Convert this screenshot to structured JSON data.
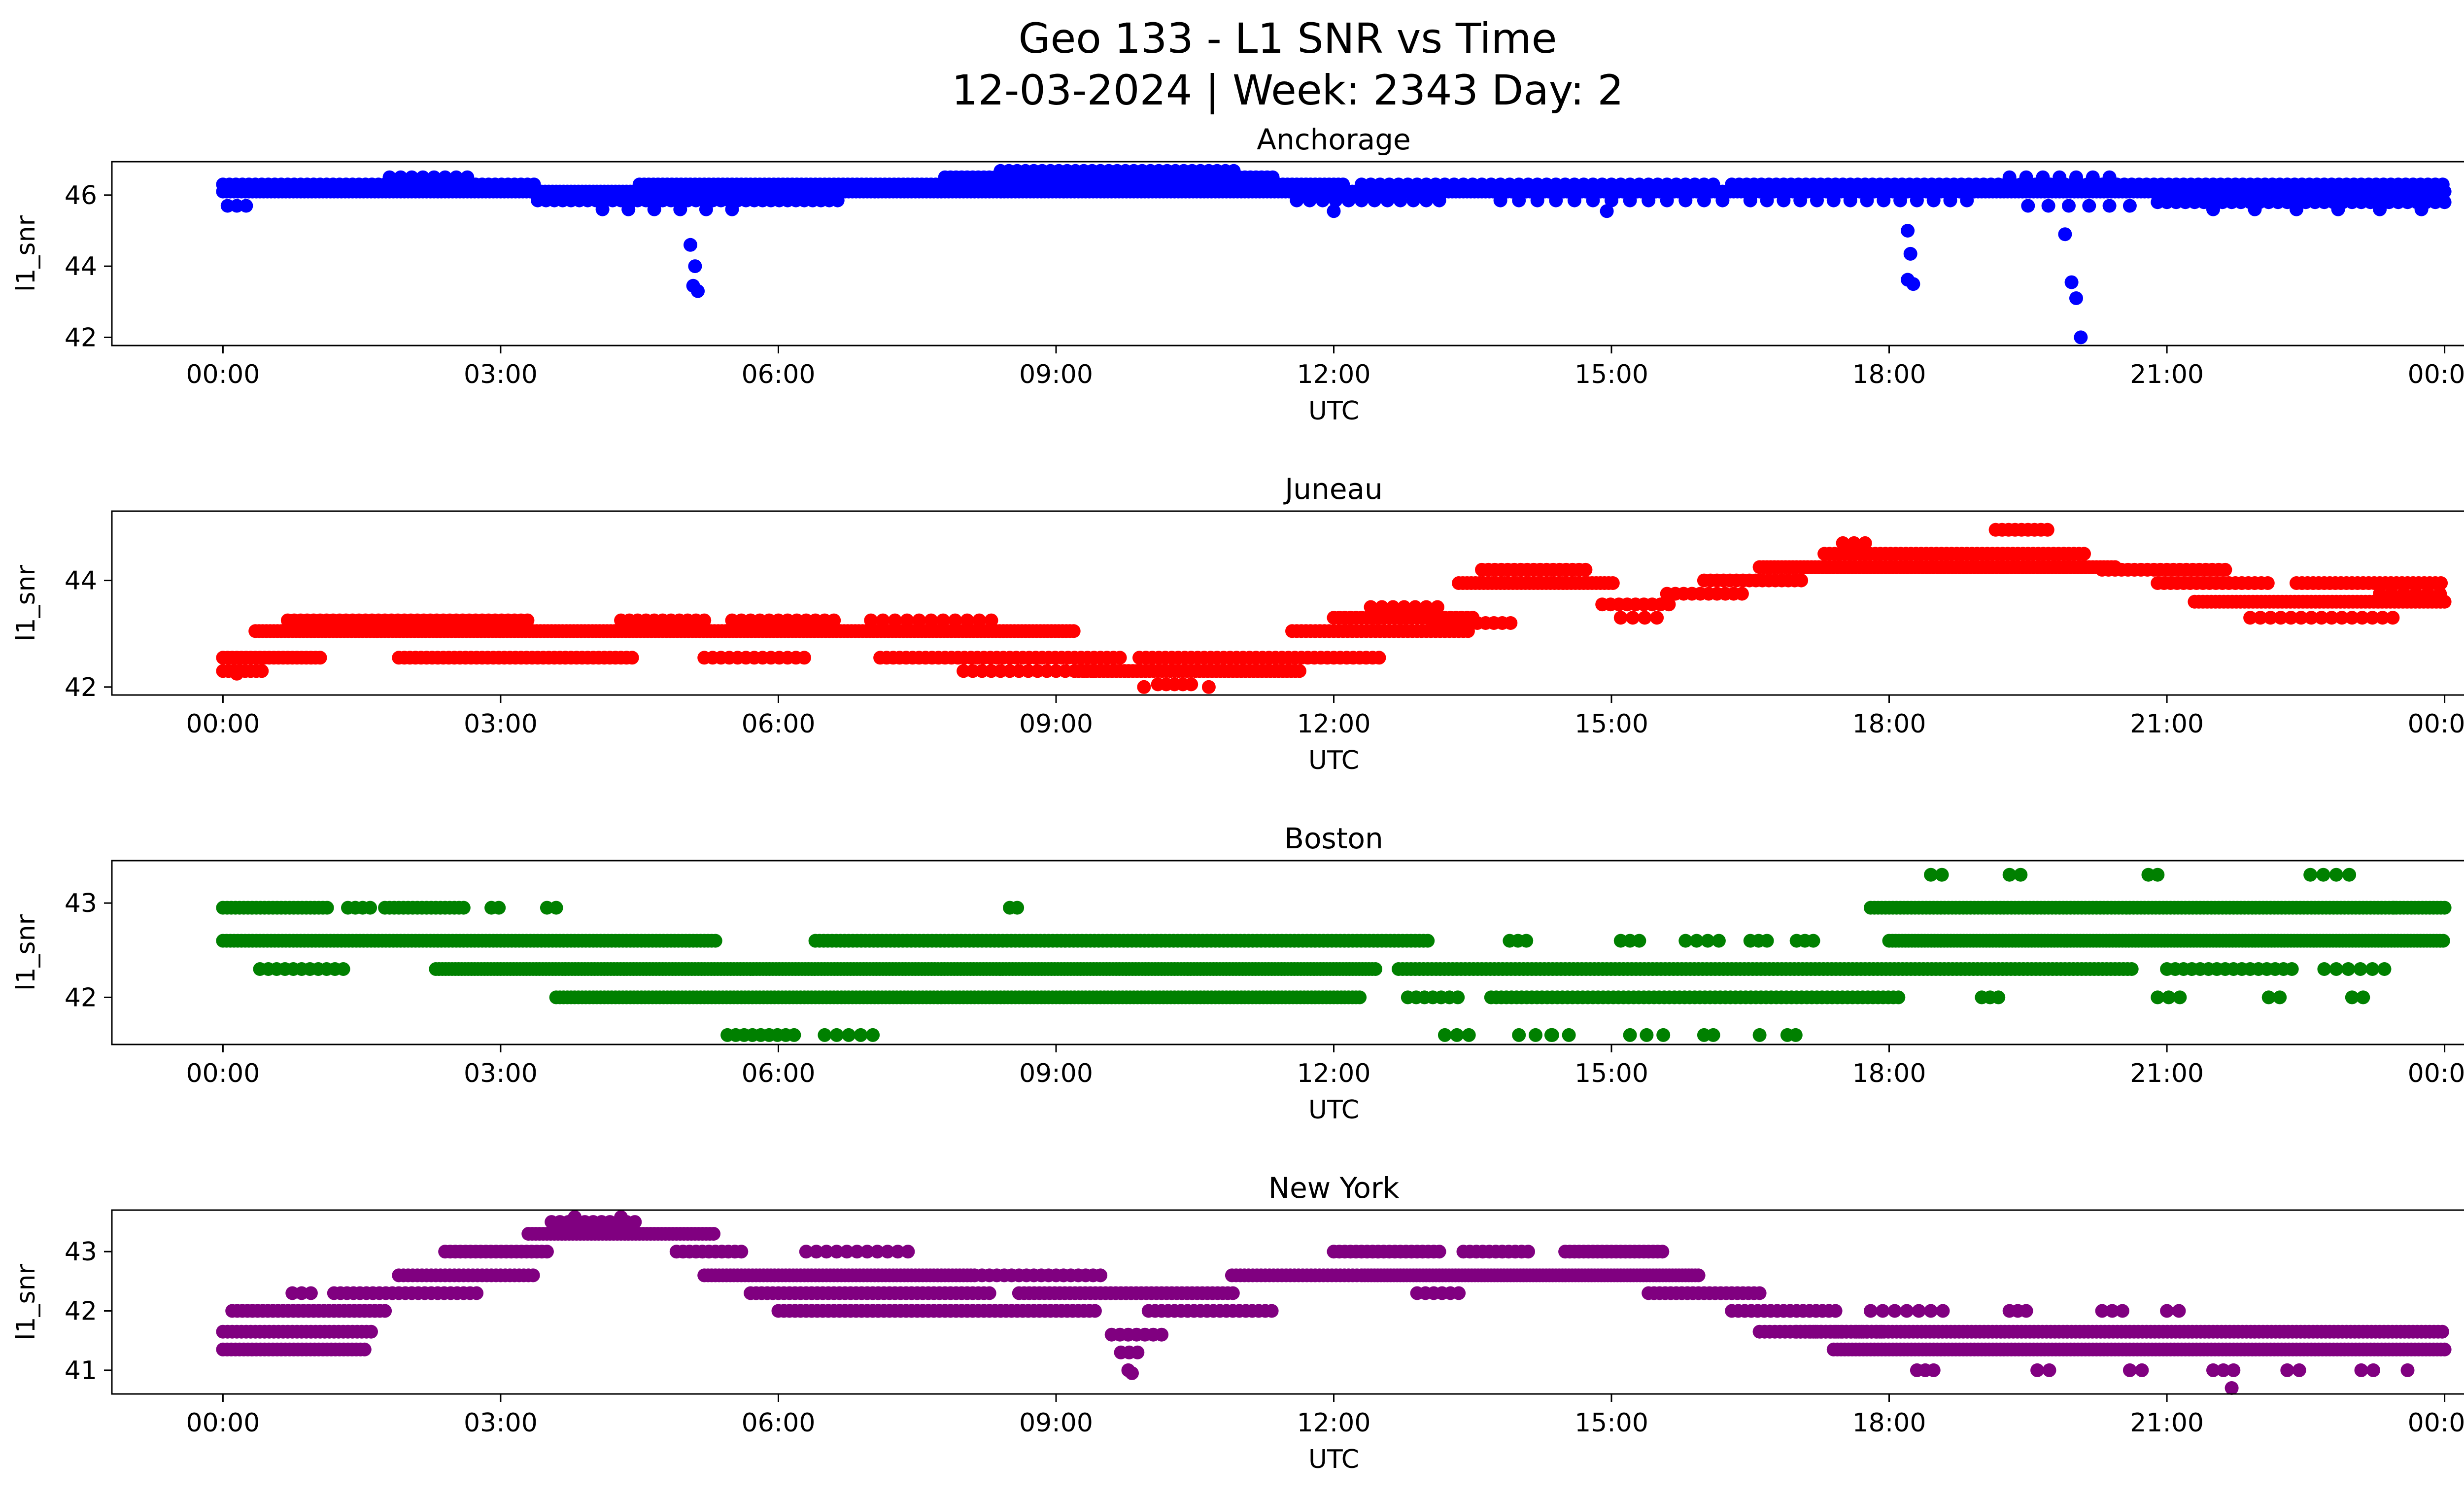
{
  "chart_data": {
    "type": "scatter",
    "title": "Geo 133 - L1 SNR vs Time",
    "subtitle": "12-03-2024 | Week: 2343 Day: 2",
    "xlabel": "UTC",
    "ylabel": "l1_snr",
    "xlim": [
      -1.2,
      25.2
    ],
    "grid": false,
    "legend": "none",
    "xticks": {
      "values": [
        0,
        3,
        6,
        9,
        12,
        15,
        18,
        21,
        24
      ],
      "labels": [
        "00:00",
        "03:00",
        "06:00",
        "09:00",
        "12:00",
        "15:00",
        "18:00",
        "21:00",
        "00:00"
      ]
    },
    "subplots": [
      {
        "title": "Anchorage",
        "color": "#0000ff",
        "ylim": [
          41.77,
          46.94
        ],
        "yticks": [
          42,
          44,
          46
        ],
        "segments": [
          [
            0.0,
            24.0,
            46.1,
            0.04
          ],
          [
            0.0,
            3.4,
            46.3,
            0.07
          ],
          [
            4.5,
            12.1,
            46.3,
            0.05
          ],
          [
            12.3,
            16.1,
            46.3,
            0.1
          ],
          [
            16.3,
            24.0,
            46.3,
            0.08
          ],
          [
            3.4,
            6.7,
            45.85,
            0.09
          ],
          [
            0.05,
            0.3,
            45.7,
            0.1
          ],
          [
            11.6,
            13.2,
            45.85,
            0.14
          ],
          [
            13.8,
            16.2,
            45.85,
            0.2
          ],
          [
            16.5,
            19.0,
            45.85,
            0.18
          ],
          [
            20.9,
            24.0,
            45.8,
            0.1
          ],
          [
            19.5,
            20.7,
            45.7,
            0.22
          ],
          [
            1.8,
            2.75,
            46.5,
            0.12
          ],
          [
            7.8,
            11.35,
            46.5,
            0.06
          ],
          [
            8.4,
            11.0,
            46.68,
            0.09
          ],
          [
            19.3,
            20.5,
            46.5,
            0.18
          ],
          [
            4.1,
            5.7,
            45.6,
            0.28
          ],
          [
            21.5,
            23.8,
            45.6,
            0.45
          ]
        ],
        "points": [
          [
            5.05,
            44.6
          ],
          [
            5.1,
            44.0
          ],
          [
            5.08,
            43.45
          ],
          [
            5.13,
            43.3
          ],
          [
            18.2,
            45.0
          ],
          [
            18.23,
            44.35
          ],
          [
            18.2,
            43.62
          ],
          [
            18.26,
            43.5
          ],
          [
            19.9,
            44.9
          ],
          [
            19.97,
            43.55
          ],
          [
            20.02,
            43.1
          ],
          [
            20.07,
            42.0
          ],
          [
            12.0,
            45.55
          ],
          [
            14.95,
            45.55
          ]
        ]
      },
      {
        "title": "Juneau",
        "color": "#ff0000",
        "ylim": [
          41.85,
          45.3
        ],
        "yticks": [
          42,
          44
        ],
        "segments": [
          [
            0.0,
            0.45,
            42.3,
            0.06
          ],
          [
            0.0,
            1.05,
            42.55,
            0.05
          ],
          [
            0.35,
            9.2,
            43.05,
            0.04
          ],
          [
            0.7,
            3.35,
            43.25,
            0.07
          ],
          [
            4.3,
            5.2,
            43.25,
            0.09
          ],
          [
            5.5,
            6.6,
            43.25,
            0.1
          ],
          [
            7.0,
            8.4,
            43.25,
            0.13
          ],
          [
            1.9,
            4.45,
            42.55,
            0.06
          ],
          [
            5.2,
            6.35,
            42.55,
            0.09
          ],
          [
            7.1,
            9.7,
            42.55,
            0.07
          ],
          [
            8.0,
            9.45,
            42.3,
            0.1
          ],
          [
            9.2,
            11.65,
            42.3,
            0.045
          ],
          [
            10.1,
            10.5,
            42.05,
            0.09
          ],
          [
            9.9,
            12.5,
            42.55,
            0.07
          ],
          [
            11.55,
            13.45,
            43.05,
            0.05
          ],
          [
            12.0,
            13.55,
            43.3,
            0.06
          ],
          [
            12.4,
            13.15,
            43.5,
            0.12
          ],
          [
            13.1,
            13.95,
            43.2,
            0.09
          ],
          [
            13.35,
            15.05,
            43.95,
            0.045
          ],
          [
            13.6,
            14.75,
            44.2,
            0.07
          ],
          [
            14.9,
            15.65,
            43.55,
            0.09
          ],
          [
            15.1,
            15.55,
            43.3,
            0.13
          ],
          [
            15.6,
            16.45,
            43.75,
            0.09
          ],
          [
            16.0,
            17.05,
            44.0,
            0.07
          ],
          [
            16.6,
            20.45,
            44.25,
            0.04
          ],
          [
            17.3,
            20.15,
            44.5,
            0.055
          ],
          [
            19.15,
            19.75,
            44.95,
            0.07
          ],
          [
            17.5,
            17.85,
            44.7,
            0.12
          ],
          [
            20.3,
            21.65,
            44.2,
            0.07
          ],
          [
            20.9,
            22.15,
            43.95,
            0.07
          ],
          [
            21.3,
            24.0,
            43.6,
            0.045
          ],
          [
            22.4,
            24.0,
            43.95,
            0.06
          ],
          [
            21.9,
            23.45,
            43.3,
            0.11
          ],
          [
            23.3,
            24.0,
            43.75,
            0.13
          ]
        ],
        "points": [
          [
            9.95,
            42.0
          ],
          [
            10.65,
            42.0
          ],
          [
            0.15,
            42.25
          ]
        ]
      },
      {
        "title": "Boston",
        "color": "#008000",
        "ylim": [
          41.5,
          43.45
        ],
        "yticks": [
          42,
          43
        ],
        "segments": [
          [
            0.0,
            1.15,
            42.95,
            0.045
          ],
          [
            1.35,
            1.6,
            42.95,
            0.08
          ],
          [
            1.75,
            2.6,
            42.95,
            0.05
          ],
          [
            2.9,
            3.05,
            42.95,
            0.08
          ],
          [
            3.5,
            3.6,
            42.95,
            0.1
          ],
          [
            8.5,
            8.65,
            42.95,
            0.08
          ],
          [
            17.8,
            24.0,
            42.95,
            0.04
          ],
          [
            0.0,
            5.35,
            42.6,
            0.04
          ],
          [
            6.4,
            13.05,
            42.6,
            0.045
          ],
          [
            13.9,
            14.15,
            42.6,
            0.09
          ],
          [
            15.1,
            15.35,
            42.6,
            0.1
          ],
          [
            15.8,
            16.25,
            42.6,
            0.12
          ],
          [
            16.5,
            16.75,
            42.6,
            0.09
          ],
          [
            17.0,
            17.25,
            42.6,
            0.09
          ],
          [
            18.0,
            24.0,
            42.6,
            0.035
          ],
          [
            0.4,
            1.35,
            42.3,
            0.09
          ],
          [
            2.3,
            12.45,
            42.3,
            0.035
          ],
          [
            12.7,
            20.65,
            42.3,
            0.045
          ],
          [
            21.0,
            22.35,
            42.3,
            0.09
          ],
          [
            22.7,
            23.35,
            42.3,
            0.13
          ],
          [
            3.6,
            12.3,
            42.0,
            0.04
          ],
          [
            12.8,
            13.35,
            42.0,
            0.09
          ],
          [
            13.7,
            18.15,
            42.0,
            0.055
          ],
          [
            19.0,
            19.25,
            42.0,
            0.09
          ],
          [
            20.9,
            21.15,
            42.0,
            0.12
          ],
          [
            22.1,
            22.3,
            42.0,
            0.12
          ],
          [
            23.0,
            23.2,
            42.0,
            0.12
          ],
          [
            5.45,
            6.25,
            41.6,
            0.09
          ],
          [
            6.5,
            7.05,
            41.6,
            0.13
          ],
          [
            13.2,
            13.55,
            41.6,
            0.13
          ],
          [
            14.0,
            14.65,
            41.6,
            0.18
          ],
          [
            15.2,
            15.65,
            41.6,
            0.18
          ],
          [
            16.0,
            16.15,
            41.6,
            0.1
          ],
          [
            16.9,
            17.0,
            41.6,
            0.09
          ],
          [
            18.45,
            18.65,
            43.3,
            0.12
          ],
          [
            19.3,
            19.5,
            43.3,
            0.12
          ],
          [
            20.8,
            20.95,
            43.3,
            0.1
          ],
          [
            22.55,
            23.05,
            43.3,
            0.14
          ]
        ],
        "points": [
          [
            14.35,
            41.6
          ],
          [
            16.6,
            41.6
          ],
          [
            23.45,
            42.95
          ]
        ]
      },
      {
        "title": "New York",
        "color": "#800080",
        "ylim": [
          40.6,
          43.7
        ],
        "yticks": [
          41,
          42,
          43
        ],
        "segments": [
          [
            0.0,
            1.55,
            41.35,
            0.045
          ],
          [
            0.0,
            1.6,
            41.65,
            0.05
          ],
          [
            0.1,
            1.75,
            42.0,
            0.055
          ],
          [
            0.75,
            0.95,
            42.3,
            0.1
          ],
          [
            1.2,
            2.75,
            42.3,
            0.07
          ],
          [
            1.9,
            3.35,
            42.6,
            0.05
          ],
          [
            2.4,
            3.55,
            43.0,
            0.055
          ],
          [
            3.3,
            5.3,
            43.3,
            0.04
          ],
          [
            3.55,
            4.45,
            43.5,
            0.09
          ],
          [
            4.9,
            5.65,
            43.0,
            0.07
          ],
          [
            5.2,
            8.15,
            42.6,
            0.04
          ],
          [
            5.7,
            8.3,
            42.3,
            0.06
          ],
          [
            6.3,
            7.45,
            43.0,
            0.11
          ],
          [
            6.0,
            9.45,
            42.0,
            0.06
          ],
          [
            8.2,
            9.5,
            42.6,
            0.08
          ],
          [
            8.6,
            10.95,
            42.3,
            0.055
          ],
          [
            9.6,
            10.15,
            41.6,
            0.09
          ],
          [
            9.7,
            9.95,
            41.3,
            0.09
          ],
          [
            10.0,
            11.35,
            42.0,
            0.07
          ],
          [
            10.9,
            12.25,
            42.6,
            0.045
          ],
          [
            12.0,
            13.15,
            43.0,
            0.06
          ],
          [
            12.3,
            15.95,
            42.6,
            0.035
          ],
          [
            13.4,
            14.15,
            43.0,
            0.07
          ],
          [
            14.5,
            15.55,
            43.0,
            0.05
          ],
          [
            12.9,
            13.35,
            42.3,
            0.09
          ],
          [
            15.4,
            16.65,
            42.3,
            0.06
          ],
          [
            16.3,
            17.45,
            42.0,
            0.07
          ],
          [
            16.6,
            17.95,
            41.65,
            0.055
          ],
          [
            17.0,
            24.0,
            41.65,
            0.045
          ],
          [
            17.4,
            24.0,
            41.35,
            0.04
          ],
          [
            17.8,
            18.65,
            42.0,
            0.13
          ],
          [
            19.3,
            19.55,
            42.0,
            0.09
          ],
          [
            20.3,
            20.55,
            42.0,
            0.11
          ],
          [
            21.0,
            21.25,
            42.0,
            0.13
          ],
          [
            18.3,
            18.5,
            41.0,
            0.09
          ],
          [
            19.6,
            19.85,
            41.0,
            0.13
          ],
          [
            20.6,
            20.8,
            41.0,
            0.13
          ],
          [
            21.5,
            21.75,
            41.0,
            0.11
          ],
          [
            22.3,
            22.5,
            41.0,
            0.13
          ],
          [
            23.1,
            23.3,
            41.0,
            0.13
          ]
        ],
        "points": [
          [
            9.78,
            41.0
          ],
          [
            9.82,
            40.95
          ],
          [
            21.7,
            40.7
          ],
          [
            3.8,
            43.58
          ],
          [
            4.3,
            43.58
          ],
          [
            23.6,
            41.0
          ]
        ]
      }
    ]
  }
}
